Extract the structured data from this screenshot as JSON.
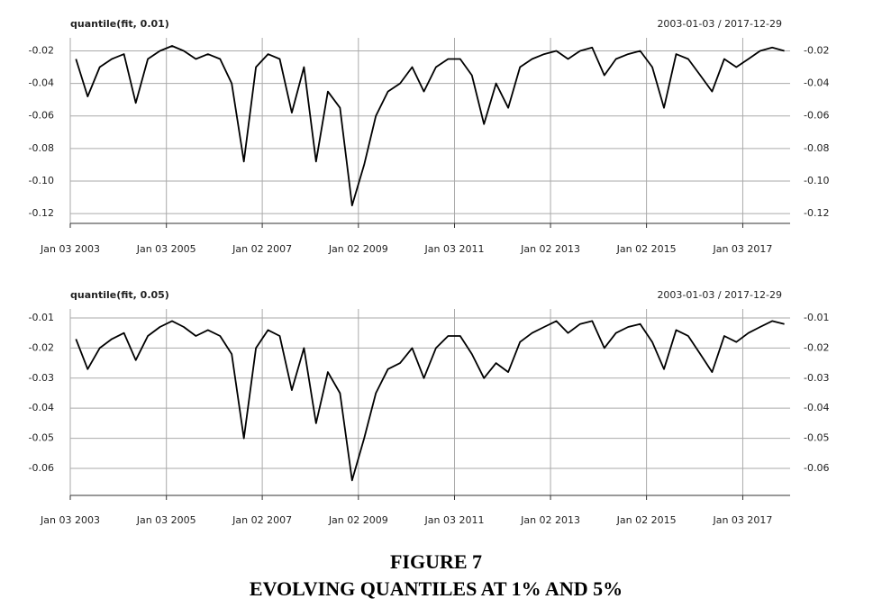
{
  "chart_data": [
    {
      "type": "line",
      "title": "quantile(fit, 0.01)",
      "subtitle": "2003-01-03 / 2017-12-29",
      "color": "#000000",
      "grid": true,
      "xlim": [
        "2003-01-03",
        "2017-12-29"
      ],
      "xticks": [
        {
          "value": "2003-01-03",
          "label": "Jan 03 2003"
        },
        {
          "value": "2005-01-03",
          "label": "Jan 03 2005"
        },
        {
          "value": "2007-01-02",
          "label": "Jan 02 2007"
        },
        {
          "value": "2009-01-02",
          "label": "Jan 02 2009"
        },
        {
          "value": "2011-01-03",
          "label": "Jan 03 2011"
        },
        {
          "value": "2013-01-02",
          "label": "Jan 02 2013"
        },
        {
          "value": "2015-01-02",
          "label": "Jan 02 2015"
        },
        {
          "value": "2017-01-03",
          "label": "Jan 03 2017"
        }
      ],
      "ylim": [
        -0.126,
        -0.012
      ],
      "yticks": [
        -0.02,
        -0.04,
        -0.06,
        -0.08,
        {
          "value": -0.1,
          "label": "-0.10"
        },
        -0.12
      ],
      "x": [
        "2003-02-15",
        "2003-05-15",
        "2003-08-15",
        "2003-11-15",
        "2004-02-15",
        "2004-05-15",
        "2004-08-15",
        "2004-11-15",
        "2005-02-15",
        "2005-05-15",
        "2005-08-15",
        "2005-11-15",
        "2006-02-15",
        "2006-05-15",
        "2006-08-15",
        "2006-11-15",
        "2007-02-15",
        "2007-05-15",
        "2007-08-15",
        "2007-11-15",
        "2008-02-15",
        "2008-05-15",
        "2008-08-15",
        "2008-11-15",
        "2009-02-15",
        "2009-05-15",
        "2009-08-15",
        "2009-11-15",
        "2010-02-15",
        "2010-05-15",
        "2010-08-15",
        "2010-11-15",
        "2011-02-15",
        "2011-05-15",
        "2011-08-15",
        "2011-11-15",
        "2012-02-15",
        "2012-05-15",
        "2012-08-15",
        "2012-11-15",
        "2013-02-15",
        "2013-05-15",
        "2013-08-15",
        "2013-11-15",
        "2014-02-15",
        "2014-05-15",
        "2014-08-15",
        "2014-11-15",
        "2015-02-15",
        "2015-05-15",
        "2015-08-15",
        "2015-11-15",
        "2016-02-15",
        "2016-05-15",
        "2016-08-15",
        "2016-11-15",
        "2017-02-15",
        "2017-05-15",
        "2017-08-15",
        "2017-11-15"
      ],
      "values": [
        -0.025,
        -0.048,
        -0.03,
        -0.025,
        -0.022,
        -0.052,
        -0.025,
        -0.02,
        -0.017,
        -0.02,
        -0.025,
        -0.022,
        -0.025,
        -0.04,
        -0.088,
        -0.03,
        -0.022,
        -0.025,
        -0.058,
        -0.03,
        -0.088,
        -0.045,
        -0.055,
        -0.115,
        -0.09,
        -0.06,
        -0.045,
        -0.04,
        -0.03,
        -0.045,
        -0.03,
        -0.025,
        -0.025,
        -0.035,
        -0.065,
        -0.04,
        -0.055,
        -0.03,
        -0.025,
        -0.022,
        -0.02,
        -0.025,
        -0.02,
        -0.018,
        -0.035,
        -0.025,
        -0.022,
        -0.02,
        -0.03,
        -0.055,
        -0.022,
        -0.025,
        -0.035,
        -0.045,
        -0.025,
        -0.03,
        -0.025,
        -0.02,
        -0.018,
        -0.02
      ]
    },
    {
      "type": "line",
      "title": "quantile(fit, 0.05)",
      "subtitle": "2003-01-03 / 2017-12-29",
      "color": "#000000",
      "grid": true,
      "xlim": [
        "2003-01-03",
        "2017-12-29"
      ],
      "xticks": [
        {
          "value": "2003-01-03",
          "label": "Jan 03 2003"
        },
        {
          "value": "2005-01-03",
          "label": "Jan 03 2005"
        },
        {
          "value": "2007-01-02",
          "label": "Jan 02 2007"
        },
        {
          "value": "2009-01-02",
          "label": "Jan 02 2009"
        },
        {
          "value": "2011-01-03",
          "label": "Jan 03 2011"
        },
        {
          "value": "2013-01-02",
          "label": "Jan 02 2013"
        },
        {
          "value": "2015-01-02",
          "label": "Jan 02 2015"
        },
        {
          "value": "2017-01-03",
          "label": "Jan 03 2017"
        }
      ],
      "ylim": [
        -0.069,
        -0.007
      ],
      "yticks": [
        -0.01,
        -0.02,
        -0.03,
        -0.04,
        -0.05,
        -0.06
      ],
      "x": [
        "2003-02-15",
        "2003-05-15",
        "2003-08-15",
        "2003-11-15",
        "2004-02-15",
        "2004-05-15",
        "2004-08-15",
        "2004-11-15",
        "2005-02-15",
        "2005-05-15",
        "2005-08-15",
        "2005-11-15",
        "2006-02-15",
        "2006-05-15",
        "2006-08-15",
        "2006-11-15",
        "2007-02-15",
        "2007-05-15",
        "2007-08-15",
        "2007-11-15",
        "2008-02-15",
        "2008-05-15",
        "2008-08-15",
        "2008-11-15",
        "2009-02-15",
        "2009-05-15",
        "2009-08-15",
        "2009-11-15",
        "2010-02-15",
        "2010-05-15",
        "2010-08-15",
        "2010-11-15",
        "2011-02-15",
        "2011-05-15",
        "2011-08-15",
        "2011-11-15",
        "2012-02-15",
        "2012-05-15",
        "2012-08-15",
        "2012-11-15",
        "2013-02-15",
        "2013-05-15",
        "2013-08-15",
        "2013-11-15",
        "2014-02-15",
        "2014-05-15",
        "2014-08-15",
        "2014-11-15",
        "2015-02-15",
        "2015-05-15",
        "2015-08-15",
        "2015-11-15",
        "2016-02-15",
        "2016-05-15",
        "2016-08-15",
        "2016-11-15",
        "2017-02-15",
        "2017-05-15",
        "2017-08-15",
        "2017-11-15"
      ],
      "values": [
        -0.017,
        -0.027,
        -0.02,
        -0.017,
        -0.015,
        -0.024,
        -0.016,
        -0.013,
        -0.011,
        -0.013,
        -0.016,
        -0.014,
        -0.016,
        -0.022,
        -0.05,
        -0.02,
        -0.014,
        -0.016,
        -0.034,
        -0.02,
        -0.045,
        -0.028,
        -0.035,
        -0.064,
        -0.05,
        -0.035,
        -0.027,
        -0.025,
        -0.02,
        -0.03,
        -0.02,
        -0.016,
        -0.016,
        -0.022,
        -0.03,
        -0.025,
        -0.028,
        -0.018,
        -0.015,
        -0.013,
        -0.011,
        -0.015,
        -0.012,
        -0.011,
        -0.02,
        -0.015,
        -0.013,
        -0.012,
        -0.018,
        -0.027,
        -0.014,
        -0.016,
        -0.022,
        -0.028,
        -0.016,
        -0.018,
        -0.015,
        -0.013,
        -0.011,
        -0.012
      ]
    }
  ],
  "figure_caption": {
    "number": "FIGURE 7",
    "title": "EVOLVING QUANTILES AT 1% AND 5%"
  }
}
